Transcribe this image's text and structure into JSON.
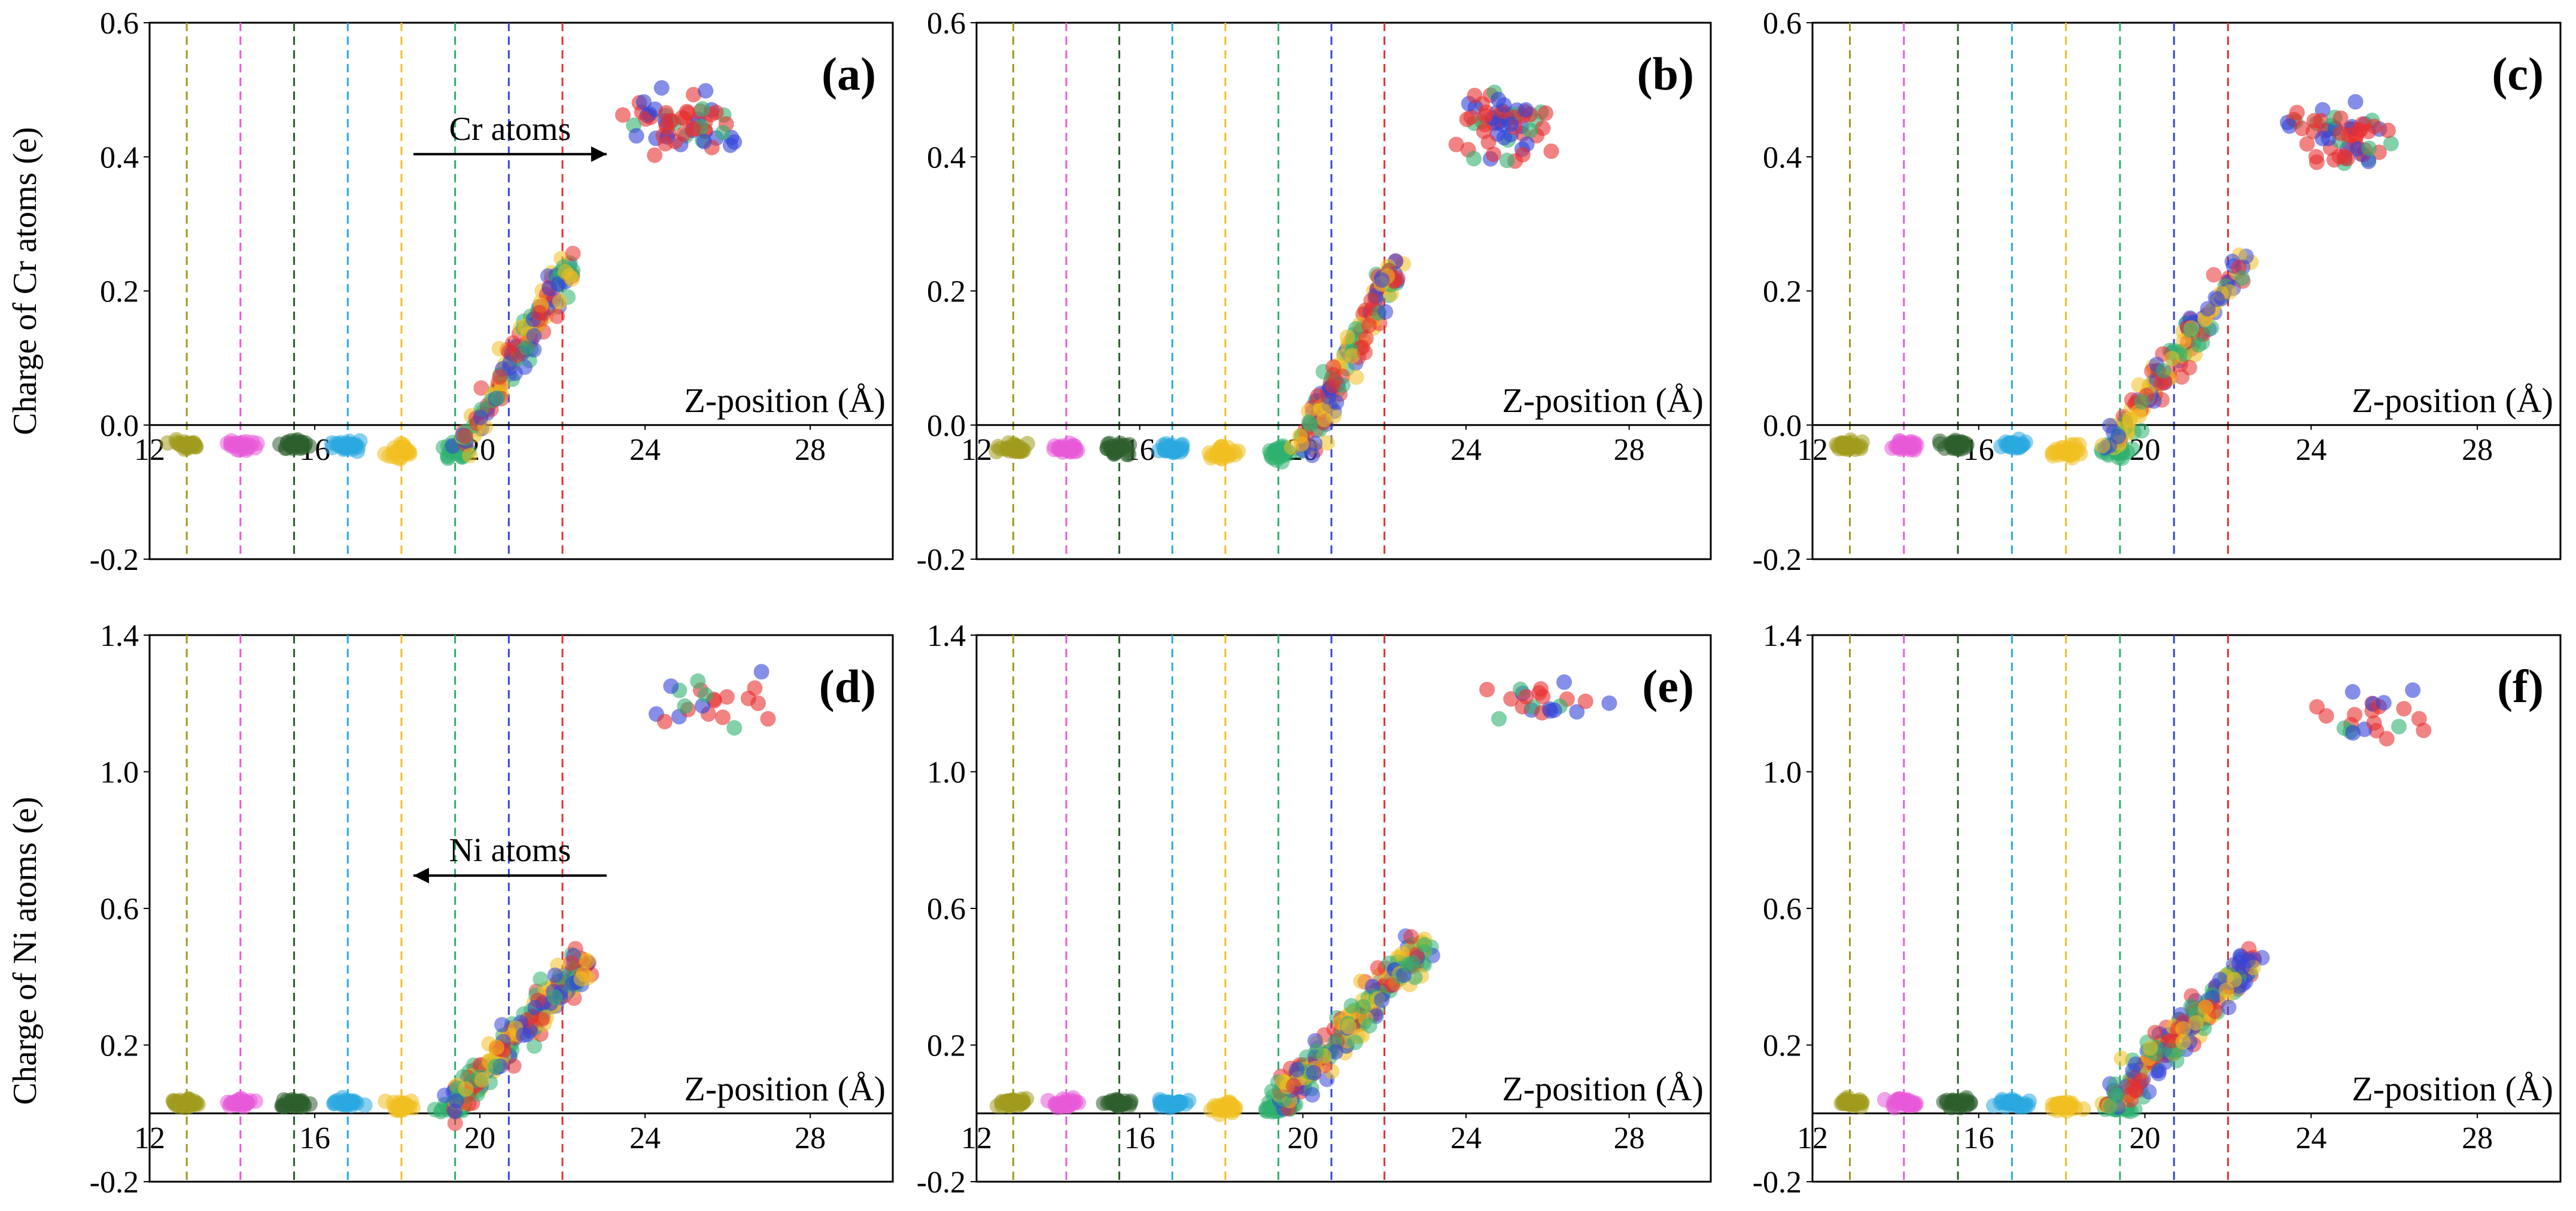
{
  "figure": {
    "y_label_top": "Charge of Cr atoms (e)",
    "y_label_bottom": "Charge of Ni atoms (e)",
    "colors": [
      "#a09a1e",
      "#e85ad8",
      "#2e5f2e",
      "#2aa7e0",
      "#f0c020",
      "#30b070",
      "#3445d8",
      "#e83030"
    ],
    "layer_positions": [
      12.9,
      14.2,
      15.5,
      16.8,
      18.1,
      19.4,
      20.7,
      22.0
    ]
  },
  "chart_data": [
    {
      "panel": "(a)",
      "type": "scatter",
      "xlabel": "Z-position (Å)",
      "ylabel": "Charge of Cr atoms (e)",
      "xlim": [
        12,
        30
      ],
      "ylim": [
        -0.2,
        0.6
      ],
      "xticks": [
        "12",
        "16",
        "20",
        "24",
        "28"
      ],
      "yticks": [
        "-0.2",
        "0.0",
        "0.2",
        "0.4",
        "0.6"
      ],
      "annotation": "Cr atoms",
      "arrow": "right",
      "regions": {
        "low_baseline": -0.03,
        "rise_start": 19.6,
        "rise_end": 22.2,
        "rise_top": 0.24,
        "cluster_center": [
          25.0,
          0.45
        ],
        "cluster_spread": [
          1.7,
          0.045
        ]
      }
    },
    {
      "panel": "(b)",
      "type": "scatter",
      "xlabel": "Z-position (Å)",
      "ylabel": "",
      "xlim": [
        12,
        30
      ],
      "ylim": [
        -0.2,
        0.6
      ],
      "xticks": [
        "12",
        "16",
        "20",
        "24",
        "28"
      ],
      "yticks": [
        "-0.2",
        "0.0",
        "0.2",
        "0.4",
        "0.6"
      ],
      "regions": {
        "low_baseline": -0.035,
        "rise_start": 20.0,
        "rise_end": 22.3,
        "rise_top": 0.24,
        "cluster_center": [
          25.0,
          0.45
        ],
        "cluster_spread": [
          1.3,
          0.05
        ]
      }
    },
    {
      "panel": "(c)",
      "type": "scatter",
      "xlabel": "Z-position (Å)",
      "ylabel": "",
      "xlim": [
        12,
        30
      ],
      "ylim": [
        -0.2,
        0.6
      ],
      "xticks": [
        "12",
        "16",
        "20",
        "24",
        "28"
      ],
      "yticks": [
        "-0.2",
        "0.0",
        "0.2",
        "0.4",
        "0.6"
      ],
      "regions": {
        "low_baseline": -0.03,
        "rise_start": 19.2,
        "rise_end": 22.4,
        "rise_top": 0.24,
        "cluster_center": [
          24.8,
          0.43
        ],
        "cluster_spread": [
          1.6,
          0.045
        ]
      }
    },
    {
      "panel": "(d)",
      "type": "scatter",
      "xlabel": "Z-position (Å)",
      "ylabel": "Charge of Ni atoms (e)",
      "xlim": [
        12,
        30
      ],
      "ylim": [
        -0.2,
        1.4
      ],
      "xticks": [
        "12",
        "16",
        "20",
        "24",
        "28"
      ],
      "yticks": [
        "-0.2",
        "0.2",
        "0.6",
        "1.0",
        "1.4"
      ],
      "annotation": "Ni atoms",
      "arrow": "left",
      "regions": {
        "low_baseline": 0.03,
        "rise_start": 19.4,
        "rise_end": 22.6,
        "rise_top": 0.45,
        "cluster_center": [
          25.6,
          1.22
        ],
        "cluster_spread": [
          1.6,
          0.08
        ]
      }
    },
    {
      "panel": "(e)",
      "type": "scatter",
      "xlabel": "Z-position (Å)",
      "ylabel": "",
      "xlim": [
        12,
        30
      ],
      "ylim": [
        -0.2,
        1.4
      ],
      "xticks": [
        "12",
        "16",
        "20",
        "24",
        "28"
      ],
      "yticks": [
        "-0.2",
        "0.2",
        "0.6",
        "1.0",
        "1.4"
      ],
      "regions": {
        "low_baseline": 0.03,
        "rise_start": 19.4,
        "rise_end": 23.0,
        "rise_top": 0.5,
        "cluster_center": [
          26.0,
          1.2
        ],
        "cluster_spread": [
          1.7,
          0.06
        ]
      }
    },
    {
      "panel": "(f)",
      "type": "scatter",
      "xlabel": "Z-position (Å)",
      "ylabel": "",
      "xlim": [
        12,
        30
      ],
      "ylim": [
        -0.2,
        1.4
      ],
      "xticks": [
        "12",
        "16",
        "20",
        "24",
        "28"
      ],
      "yticks": [
        "-0.2",
        "0.2",
        "0.6",
        "1.0",
        "1.4"
      ],
      "regions": {
        "low_baseline": 0.03,
        "rise_start": 19.2,
        "rise_end": 22.6,
        "rise_top": 0.45,
        "cluster_center": [
          25.4,
          1.18
        ],
        "cluster_spread": [
          1.5,
          0.08
        ]
      }
    }
  ]
}
